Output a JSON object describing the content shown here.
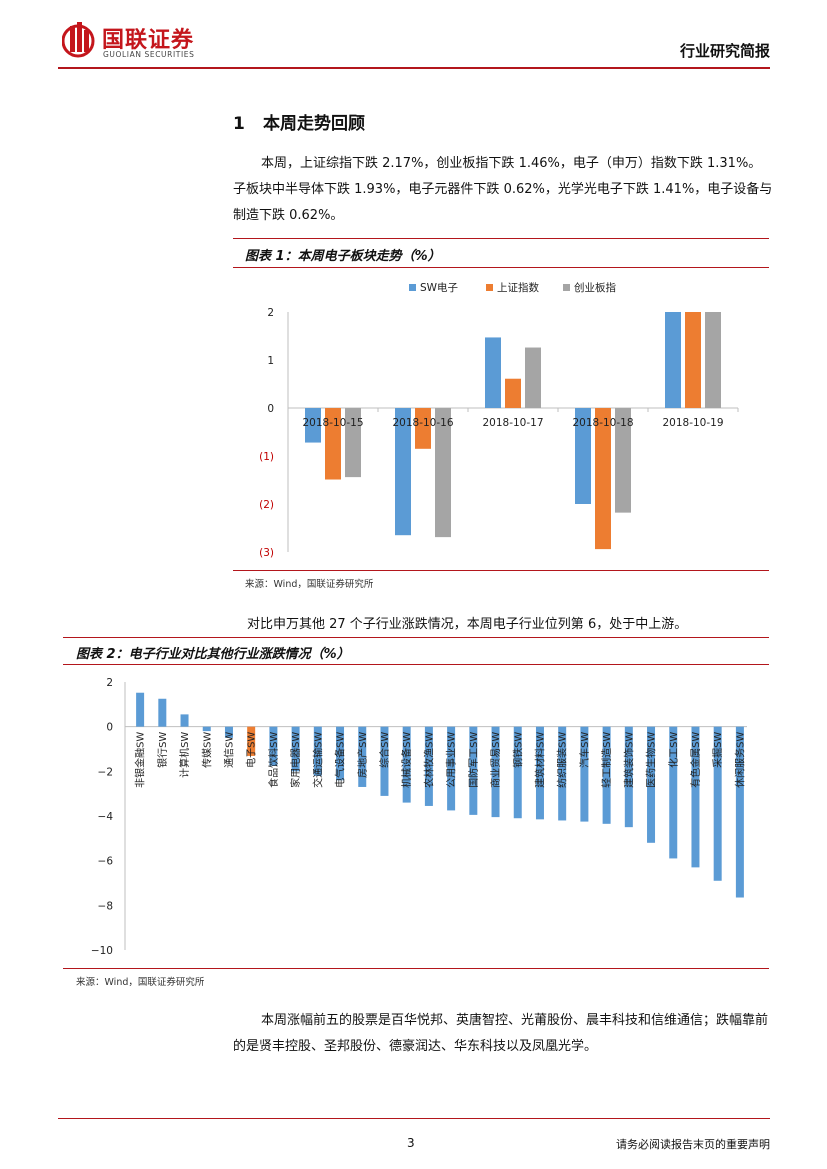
{
  "header": {
    "logo_cn": "国联证券",
    "logo_en": "GUOLIAN SECURITIES",
    "report_type": "行业研究简报"
  },
  "section": {
    "number": "1",
    "title": "本周走势回顾"
  },
  "paragraphs": {
    "p1": "本周，上证综指下跌 2.17%，创业板指下跌 1.46%，电子（申万）指数下跌 1.31%。子板块中半导体下跌 1.93%，电子元器件下跌 0.62%，光学光电子下跌 1.41%，电子设备与制造下跌 0.62%。",
    "p2": "对比申万其他 27 个子行业涨跌情况，本周电子行业位列第 6，处于中上游。",
    "p3": "本周涨幅前五的股票是百华悦邦、英唐智控、光莆股份、晨丰科技和信维通信；跌幅靠前的是贤丰控股、圣邦股份、德豪润达、华东科技以及凤凰光学。"
  },
  "figures": {
    "fig1": {
      "title": "图表 1：本周电子板块走势（%）",
      "source": "来源：Wind，国联证券研究所"
    },
    "fig2": {
      "title": "图表 2：电子行业对比其他行业涨跌情况（%）",
      "source": "来源：Wind，国联证券研究所"
    }
  },
  "chart_data": [
    {
      "type": "bar",
      "categories": [
        "2018-10-15",
        "2018-10-16",
        "2018-10-17",
        "2018-10-18",
        "2018-10-19"
      ],
      "series": [
        {
          "name": "SW电子",
          "color": "#5b9bd5",
          "values": [
            -0.72,
            -2.65,
            1.47,
            -2.0,
            2.0
          ]
        },
        {
          "name": "上证指数",
          "color": "#ed7d31",
          "values": [
            -1.49,
            -0.85,
            0.61,
            -2.94,
            2.0
          ]
        },
        {
          "name": "创业板指",
          "color": "#a5a5a5",
          "values": [
            -1.44,
            -2.69,
            1.26,
            -2.18,
            2.0
          ]
        }
      ],
      "ylim": [
        -3,
        2
      ],
      "yticks": [
        2,
        1,
        0,
        -1,
        -2,
        -3
      ],
      "ytick_labels": [
        "2",
        "1",
        "0",
        "(1)",
        "(2)",
        "(3)"
      ],
      "legend": "top"
    },
    {
      "type": "bar",
      "categories": [
        "非银金融SW",
        "银行SW",
        "计算机SW",
        "传媒SW",
        "通信SW",
        "电子SW",
        "食品饮料SW",
        "家用电器SW",
        "交通运输SW",
        "电气设备SW",
        "房地产SW",
        "综合SW",
        "机械设备SW",
        "农林牧渔SW",
        "公用事业SW",
        "国防军工SW",
        "商业贸易SW",
        "钢铁SW",
        "建筑材料SW",
        "纺织服装SW",
        "汽车SW",
        "轻工制造SW",
        "建筑装饰SW",
        "医药生物SW",
        "化工SW",
        "有色金属SW",
        "采掘SW",
        "休闲服务SW"
      ],
      "values": [
        1.52,
        1.25,
        0.55,
        -0.2,
        -0.5,
        -1.31,
        -1.75,
        -2.0,
        -2.2,
        -2.4,
        -2.7,
        -3.1,
        -3.4,
        -3.55,
        -3.75,
        -3.95,
        -4.05,
        -4.1,
        -4.15,
        -4.2,
        -4.25,
        -4.35,
        -4.5,
        -5.2,
        -5.9,
        -6.3,
        -6.9,
        -7.65
      ],
      "highlight": "电子SW",
      "colors": {
        "default": "#5b9bd5",
        "highlight": "#ed7d31"
      },
      "ylim": [
        -10,
        2
      ],
      "yticks": [
        2,
        0,
        -2,
        -4,
        -6,
        -8,
        -10
      ],
      "ytick_labels": [
        "2",
        "0",
        "−2",
        "−4",
        "−6",
        "−8",
        "−10"
      ]
    }
  ],
  "footer": {
    "page_number": "3",
    "disclaimer": "请务必阅读报告末页的重要声明"
  }
}
